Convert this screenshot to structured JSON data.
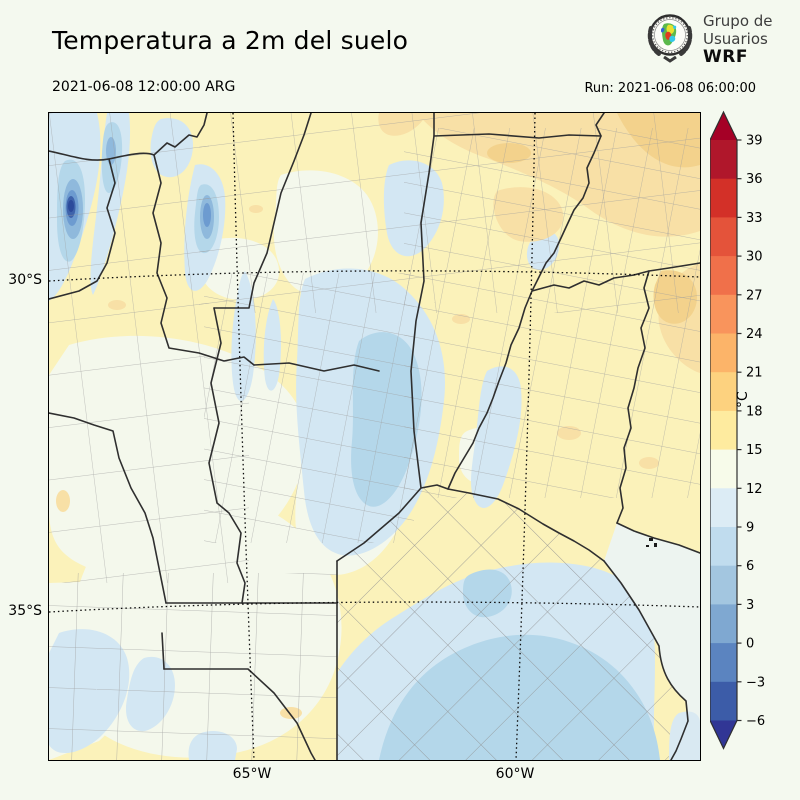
{
  "title": "Temperatura a 2m del suelo",
  "valid_time": "2021-06-08 12:00:00 ARG",
  "run_label": "Run: 2021-06-08 06:00:00",
  "logo": {
    "line1": "Grupo de",
    "line2": "Usuarios",
    "line3": "WRF"
  },
  "map": {
    "y_ticks": [
      "30°S",
      "35°S"
    ],
    "x_ticks": [
      "65°W",
      "60°W"
    ],
    "field_colors": {
      "base_yellow_15_18": "#fbf2ba",
      "white_12_15": "#f4f8ec",
      "light_blue_9_12": "#d3e7f3",
      "mid_blue_6_9": "#b4d7ea",
      "deep_blue_spots": "#6d9bd0",
      "navy_spot": "#31509f",
      "orange_18_21": "#f8e0a6",
      "orange_21_24": "#f3d28c",
      "sea_water": "#edf4f0"
    }
  },
  "colorbar": {
    "unit": "°C",
    "ticks": [
      39,
      36,
      33,
      30,
      27,
      24,
      21,
      18,
      15,
      12,
      9,
      6,
      3,
      0,
      -3,
      -6
    ],
    "segment_colors_top_to_bottom": [
      "#b0172b",
      "#d33028",
      "#e4533a",
      "#f0704a",
      "#f9945c",
      "#fcb469",
      "#fdd27f",
      "#feeb9f",
      "#f7fbea",
      "#dcecf5",
      "#c0dcee",
      "#a3c6e0",
      "#7fa8d1",
      "#5b84c0",
      "#3c5ca8"
    ],
    "extend_over_color": "#a50026",
    "extend_under_color": "#313695"
  }
}
